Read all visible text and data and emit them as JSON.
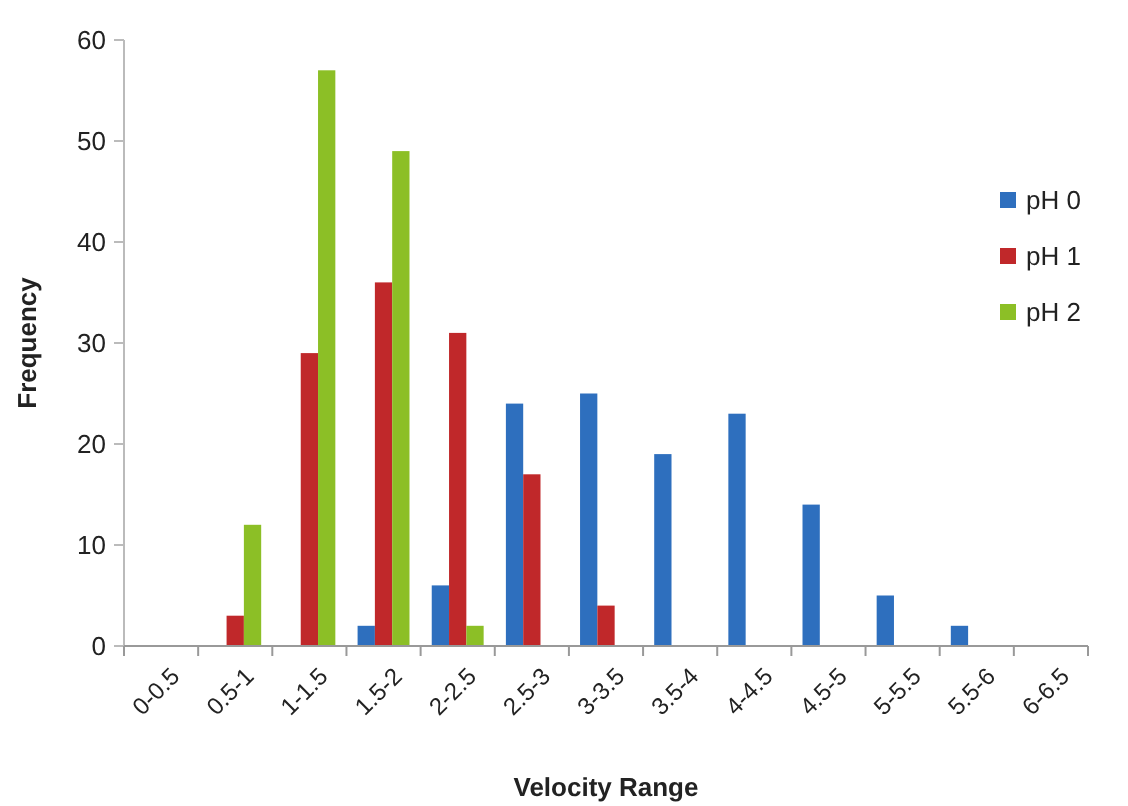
{
  "chart_data": {
    "type": "bar",
    "xlabel": "Velocity Range",
    "ylabel": "Frequency",
    "categories": [
      "0-0.5",
      "0.5-1",
      "1-1.5",
      "1.5-2",
      "2-2.5",
      "2.5-3",
      "3-3.5",
      "3.5-4",
      "4-4.5",
      "4.5-5",
      "5-5.5",
      "5.5-6",
      "6-6.5"
    ],
    "series": [
      {
        "name": "pH 0",
        "color": "#2e6fbe",
        "values": [
          0,
          0,
          0,
          2,
          6,
          24,
          25,
          19,
          23,
          14,
          5,
          2,
          0
        ]
      },
      {
        "name": "pH 1",
        "color": "#c0282a",
        "values": [
          0,
          3,
          29,
          36,
          31,
          17,
          4,
          0,
          0,
          0,
          0,
          0,
          0
        ]
      },
      {
        "name": "pH 2",
        "color": "#8cbf26",
        "values": [
          0,
          12,
          57,
          49,
          2,
          0,
          0,
          0,
          0,
          0,
          0,
          0,
          0
        ]
      }
    ],
    "ylim": [
      0,
      60
    ],
    "yticks": [
      0,
      10,
      20,
      30,
      40,
      50,
      60
    ],
    "grid": false,
    "legend": "right"
  }
}
